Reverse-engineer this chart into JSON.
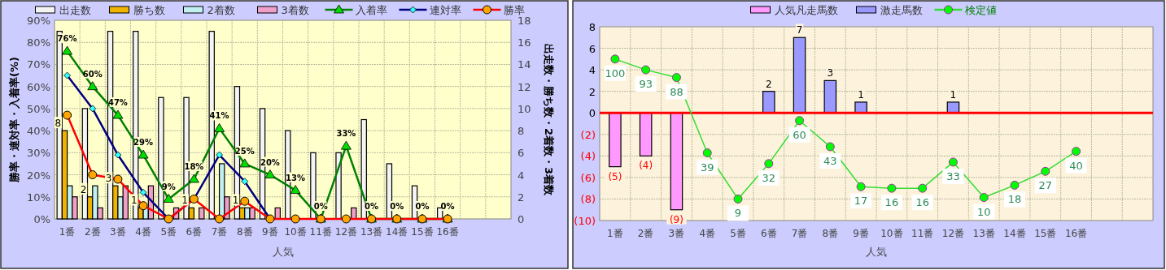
{
  "chart_data": [
    {
      "type": "bar",
      "xlabel": "人気",
      "ylabel": "勝率・連対率・入着率(%)",
      "y2label": "出走数・勝ち数・2着数・3着数",
      "categories": [
        "1番",
        "2番",
        "3番",
        "4番",
        "5番",
        "6番",
        "7番",
        "8番",
        "9番",
        "10番",
        "11番",
        "12番",
        "13番",
        "14番",
        "15番",
        "16番",
        null,
        null
      ],
      "series": [
        {
          "name": "出走数",
          "axis": "y2",
          "color": "#f4f4f4",
          "values": [
            17,
            10,
            17,
            17,
            11,
            11,
            17,
            12,
            10,
            8,
            6,
            6,
            9,
            5,
            3,
            1,
            null,
            null
          ]
        },
        {
          "name": "勝ち数",
          "axis": "y2",
          "color": "#f0b400",
          "values": [
            8,
            2,
            3,
            1,
            0,
            1,
            0,
            1,
            0,
            0,
            0,
            0,
            0,
            0,
            0,
            0,
            null,
            null
          ],
          "value_labels": [
            "8",
            "2",
            "3",
            "1",
            null,
            "1",
            null,
            "1",
            null,
            null,
            null,
            null,
            null,
            null,
            null,
            null,
            null,
            null
          ]
        },
        {
          "name": "2着数",
          "axis": "y2",
          "color": "#c0f0f0",
          "values": [
            3,
            3,
            2,
            1,
            0,
            0,
            5,
            1,
            0,
            0,
            0,
            0,
            0,
            0,
            0,
            0,
            null,
            null
          ]
        },
        {
          "name": "3着数",
          "axis": "y2",
          "color": "#f0a0c8",
          "values": [
            2,
            1,
            3,
            3,
            1,
            1,
            2,
            1,
            1,
            0,
            0,
            1,
            0,
            0,
            0,
            0,
            null,
            null
          ]
        },
        {
          "name": "入着率",
          "type": "line",
          "color": "#008000",
          "marker": "triangle",
          "colors": [
            "#00dd00",
            "#00dd00",
            "#00dd00",
            "#00dd00",
            "#00dd00",
            "#00dd00",
            "#00dd00",
            "#00dd00",
            "#00dd00",
            "#00dd00",
            "#00dd00",
            "#00dd00",
            "#00dd00",
            "#00dd00",
            "#00dd00",
            "#00dd00",
            "#00dd00",
            "#00dd00"
          ],
          "values": [
            76,
            60,
            47,
            29,
            9,
            18,
            41,
            25,
            20,
            13,
            0,
            33,
            0,
            0,
            0,
            0,
            null,
            null
          ],
          "value_labels": [
            "76%",
            "60%",
            "47%",
            "29%",
            "9%",
            "18%",
            "41%",
            "25%",
            "20%",
            "13%",
            "0%",
            "33%",
            "0%",
            "0%",
            "0%",
            "0%",
            null,
            null
          ]
        },
        {
          "name": "連対率",
          "type": "line",
          "color": "#000080",
          "marker": "diamond",
          "colors": [
            "#33ffff",
            "#33ffff",
            "#33ffff",
            "#33ffff",
            "#33ffff",
            "#33ffff",
            "#33ffff",
            "#33ffff",
            "#33ffff",
            "#33ffff",
            "#33ffff",
            "#33ffff",
            "#33ffff",
            "#33ffff",
            "#33ffff",
            "#33ffff",
            "#33ffff",
            "#33ffff"
          ],
          "values": [
            65,
            50,
            29,
            12,
            0,
            9,
            29,
            17,
            0,
            null,
            null,
            null,
            null,
            null,
            null,
            null,
            null,
            null
          ]
        },
        {
          "name": "勝率",
          "type": "line",
          "color": "#ff0000",
          "marker": "circle",
          "colors": [
            "#ffa500",
            "#ffa500",
            "#ffa500",
            "#ffa500",
            "#ffa500",
            "#ffa500",
            "#ffa500",
            "#ffa500",
            "#ffa500",
            "#ffa500",
            "#ffa500",
            "#ffa500",
            "#ffa500",
            "#ffa500",
            "#ffa500",
            "#ffa500",
            "#ffa500",
            "#ffa500"
          ],
          "values": [
            47,
            20,
            18,
            6,
            0,
            9,
            0,
            8,
            0,
            0,
            0,
            0,
            0,
            0,
            0,
            0,
            null,
            null
          ]
        }
      ],
      "ylim": [
        0,
        90
      ],
      "yticks": [
        {
          "value": 0,
          "label": "0%"
        },
        {
          "value": 10,
          "label": "10%"
        },
        {
          "value": 20,
          "label": "20%"
        },
        {
          "value": 30,
          "label": "30%"
        },
        {
          "value": 40,
          "label": "40%"
        },
        {
          "value": 50,
          "label": "50%"
        },
        {
          "value": 60,
          "label": "60%"
        },
        {
          "value": 70,
          "label": "70%"
        },
        {
          "value": 80,
          "label": "80%"
        },
        {
          "value": 90,
          "label": "90%"
        }
      ],
      "y2lim": [
        0,
        18
      ],
      "y2ticks": [
        0,
        2,
        4,
        6,
        8,
        10,
        12,
        14,
        16,
        18
      ],
      "grid": true,
      "legend": "top"
    },
    {
      "type": "bar",
      "xlabel": "人気",
      "stacked": true,
      "categories": [
        "1番",
        "2番",
        "3番",
        "4番",
        "5番",
        "6番",
        "7番",
        "8番",
        "9番",
        "10番",
        "11番",
        "12番",
        "13番",
        "14番",
        "15番",
        "16番",
        null,
        null
      ],
      "series": [
        {
          "name": "人気凡走馬数",
          "color": "#ff99ff",
          "values": [
            -5,
            -4,
            -9,
            null,
            null,
            null,
            null,
            null,
            null,
            null,
            null,
            null,
            null,
            null,
            null,
            null,
            null,
            null
          ],
          "value_labels": [
            "(5)",
            "(4)",
            "(9)",
            null,
            null,
            null,
            null,
            null,
            null,
            null,
            null,
            null,
            null,
            null,
            null,
            null,
            null,
            null
          ]
        },
        {
          "name": "激走馬数",
          "color": "#9999ff",
          "values": [
            null,
            null,
            null,
            null,
            null,
            2,
            7,
            3,
            1,
            null,
            null,
            1,
            null,
            null,
            null,
            null,
            null,
            null
          ],
          "value_labels": [
            null,
            null,
            null,
            null,
            null,
            "2",
            "7",
            "3",
            "1",
            null,
            null,
            "1",
            null,
            null,
            null,
            null,
            null,
            null
          ]
        },
        {
          "name": "検定値",
          "type": "line",
          "axis": "y2",
          "color": "#33dd33",
          "marker": "circle",
          "colors": [
            "#00ff00",
            "#00ff00",
            "#00ff00",
            "#00ff00",
            "#00ff00",
            "#00ff00",
            "#00ff00",
            "#00ff00",
            "#00ff00",
            "#00ff00",
            "#00ff00",
            "#00ff00",
            "#00ff00",
            "#00ff00",
            "#00ff00",
            "#00ff00",
            "#00ff00",
            "#00ff00"
          ],
          "values": [
            100,
            93,
            88,
            39,
            9,
            32,
            60,
            43,
            17,
            16,
            16,
            33,
            10,
            18,
            27,
            40,
            null,
            null
          ],
          "value_labels": [
            "100",
            "93",
            "88",
            "39",
            "9",
            "32",
            "60",
            "43",
            "17",
            "16",
            "16",
            "33",
            "10",
            "18",
            "27",
            "40",
            null,
            null
          ]
        }
      ],
      "ylim": [
        -10,
        8
      ],
      "yticks": [
        {
          "value": -10,
          "label": "(10)"
        },
        {
          "value": -8,
          "label": "(8)"
        },
        {
          "value": -6,
          "label": "(6)"
        },
        {
          "value": -4,
          "label": "(4)"
        },
        {
          "value": -2,
          "label": "(2)"
        },
        0,
        2,
        4,
        6,
        8
      ],
      "y2lim": [
        -5,
        121
      ],
      "ref_lines": [
        {
          "axis": "y",
          "value": 0,
          "color": "#ff0000"
        }
      ],
      "grid": true,
      "legend": "top"
    }
  ]
}
